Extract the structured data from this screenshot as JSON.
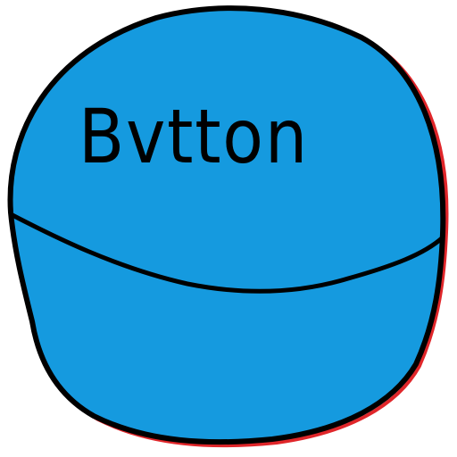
{
  "button": {
    "label": "Bvtton",
    "fill_color": "#159ADF",
    "stroke_color": "#000000",
    "shadow_color": "#E0262A"
  }
}
